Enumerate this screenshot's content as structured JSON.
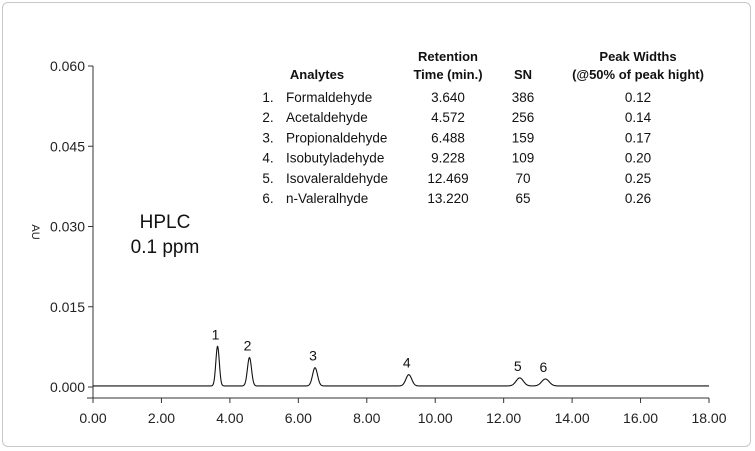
{
  "chart_data": {
    "type": "line",
    "ylabel": "AU",
    "xlabel": "",
    "xlim": [
      0,
      18
    ],
    "ylim": [
      0,
      0.06
    ],
    "x_ticks": [
      "0.00",
      "2.00",
      "4.00",
      "6.00",
      "8.00",
      "10.00",
      "12.00",
      "14.00",
      "16.00",
      "18.00"
    ],
    "y_ticks": [
      "0.000",
      "0.015",
      "0.030",
      "0.045",
      "0.060"
    ],
    "baseline": 0.0002,
    "peaks": [
      {
        "label": "1",
        "x": 3.64,
        "height": 0.0074,
        "width": 0.12
      },
      {
        "label": "2",
        "x": 4.572,
        "height": 0.0053,
        "width": 0.14
      },
      {
        "label": "3",
        "x": 6.488,
        "height": 0.0034,
        "width": 0.17
      },
      {
        "label": "4",
        "x": 9.228,
        "height": 0.0021,
        "width": 0.2
      },
      {
        "label": "5",
        "x": 12.469,
        "height": 0.0015,
        "width": 0.25
      },
      {
        "label": "6",
        "x": 13.22,
        "height": 0.0013,
        "width": 0.26
      }
    ],
    "annotation": {
      "line1": "HPLC",
      "line2": "0.1 ppm"
    },
    "table": {
      "headers": {
        "analytes": "Analytes",
        "retention_1": "Retention",
        "retention_2": "Time (min.)",
        "sn": "SN",
        "widths_1": "Peak Widths",
        "widths_2": "(@50% of peak hight)"
      },
      "rows": [
        {
          "num": "1.",
          "name": "Formaldehyde",
          "rt": "3.640",
          "sn": "386",
          "width": "0.12"
        },
        {
          "num": "2.",
          "name": "Acetaldehyde",
          "rt": "4.572",
          "sn": "256",
          "width": "0.14"
        },
        {
          "num": "3.",
          "name": "Propionaldehyde",
          "rt": "6.488",
          "sn": "159",
          "width": "0.17"
        },
        {
          "num": "4.",
          "name": "Isobutyladehyde",
          "rt": "9.228",
          "sn": "109",
          "width": "0.20"
        },
        {
          "num": "5.",
          "name": "Isovaleraldehyde",
          "rt": "12.469",
          "sn": "70",
          "width": "0.25"
        },
        {
          "num": "6.",
          "name": "n-Valeralhyde",
          "rt": "13.220",
          "sn": "65",
          "width": "0.26"
        }
      ]
    }
  }
}
